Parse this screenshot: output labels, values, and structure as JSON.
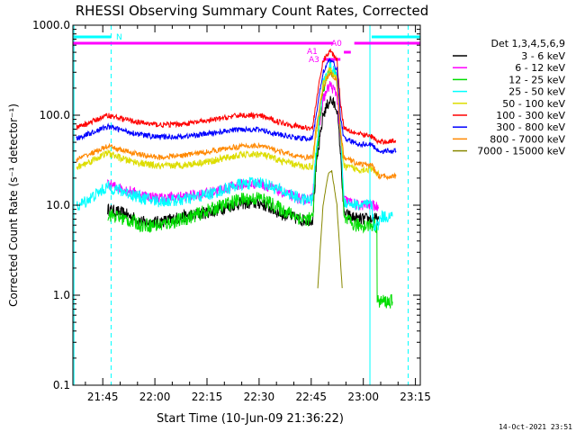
{
  "chart_data": {
    "type": "line",
    "title": "RHESSI Observing Summary Count Rates, Corrected",
    "xlabel": "Start Time (10-Jun-09 21:36:22)",
    "ylabel": "Corrected Count Rate (s⁻¹ detector⁻¹)",
    "y_scale": "log",
    "ylim": [
      0.1,
      1000
    ],
    "xlim_min": [
      0,
      100
    ],
    "y_ticks": [
      {
        "v": 0.1,
        "label": "0.1"
      },
      {
        "v": 1,
        "label": "1.0"
      },
      {
        "v": 10,
        "label": "10.0"
      },
      {
        "v": 100,
        "label": "100.0"
      },
      {
        "v": 1000,
        "label": "1000.0"
      }
    ],
    "x_ticks": [
      {
        "m": 8.6,
        "label": "21:45"
      },
      {
        "m": 23.6,
        "label": "22:00"
      },
      {
        "m": 38.6,
        "label": "22:15"
      },
      {
        "m": 53.6,
        "label": "22:30"
      },
      {
        "m": 68.6,
        "label": "22:45"
      },
      {
        "m": 83.6,
        "label": "23:00"
      },
      {
        "m": 98.6,
        "label": "23:15"
      }
    ],
    "x_units": "minutes since start",
    "legend_title": "Det 1,3,4,5,6,9",
    "legend_position": "right",
    "series": [
      {
        "name": "3 - 6 keV",
        "color": "#000000",
        "noise": 0.07,
        "points": [
          [
            10,
            9
          ],
          [
            15,
            8
          ],
          [
            20,
            6.5
          ],
          [
            25,
            6.5
          ],
          [
            32,
            7.5
          ],
          [
            40,
            8.5
          ],
          [
            48,
            10.5
          ],
          [
            54,
            10.5
          ],
          [
            60,
            8
          ],
          [
            66,
            6.8
          ],
          [
            69,
            7
          ],
          [
            70,
            25
          ],
          [
            72,
            100
          ],
          [
            74,
            150
          ],
          [
            76,
            120
          ],
          [
            77,
            40
          ],
          [
            78,
            8
          ],
          [
            82,
            7
          ],
          [
            86,
            7
          ],
          [
            88,
            7
          ]
        ]
      },
      {
        "name": "6 - 12 keV",
        "color": "#ff00ff",
        "noise": 0.06,
        "points": [
          [
            10,
            17
          ],
          [
            15,
            15
          ],
          [
            20,
            13
          ],
          [
            25,
            12
          ],
          [
            32,
            12.5
          ],
          [
            40,
            14
          ],
          [
            48,
            17
          ],
          [
            54,
            17.5
          ],
          [
            60,
            14
          ],
          [
            66,
            11.5
          ],
          [
            69,
            12
          ],
          [
            70,
            40
          ],
          [
            72,
            150
          ],
          [
            74,
            220
          ],
          [
            76,
            170
          ],
          [
            77,
            60
          ],
          [
            78,
            11.5
          ],
          [
            82,
            10
          ],
          [
            86,
            10
          ],
          [
            88,
            9.5
          ]
        ]
      },
      {
        "name": "12 - 25 keV",
        "color": "#00dd00",
        "noise": 0.08,
        "points": [
          [
            10,
            8
          ],
          [
            15,
            7
          ],
          [
            20,
            6
          ],
          [
            25,
            6
          ],
          [
            32,
            7
          ],
          [
            40,
            9
          ],
          [
            48,
            11.5
          ],
          [
            54,
            12
          ],
          [
            60,
            9
          ],
          [
            66,
            7
          ],
          [
            69,
            7
          ],
          [
            70,
            30
          ],
          [
            72,
            200
          ],
          [
            74,
            330
          ],
          [
            76,
            250
          ],
          [
            77,
            80
          ],
          [
            78,
            7
          ],
          [
            81,
            6
          ],
          [
            86,
            6
          ],
          [
            87.5,
            6
          ],
          [
            87.6,
            0.85
          ],
          [
            92,
            0.85
          ]
        ]
      },
      {
        "name": "25 - 50 keV",
        "color": "#00ffff",
        "noise": 0.07,
        "points": [
          [
            1,
            9.5
          ],
          [
            10,
            16
          ],
          [
            15,
            14
          ],
          [
            20,
            12
          ],
          [
            25,
            11
          ],
          [
            32,
            11.5
          ],
          [
            40,
            13.5
          ],
          [
            48,
            17
          ],
          [
            54,
            18
          ],
          [
            60,
            14.5
          ],
          [
            66,
            11.5
          ],
          [
            69,
            11.5
          ],
          [
            70,
            40
          ],
          [
            72,
            220
          ],
          [
            74,
            350
          ],
          [
            76,
            260
          ],
          [
            77,
            80
          ],
          [
            78,
            11
          ],
          [
            82,
            10
          ],
          [
            86,
            10
          ],
          [
            86.5,
            6
          ],
          [
            88,
            6
          ],
          [
            88.5,
            7.5
          ],
          [
            92,
            7.5
          ]
        ]
      },
      {
        "name": "50 - 100 keV",
        "color": "#dddd00",
        "noise": 0.04,
        "points": [
          [
            1,
            26
          ],
          [
            10,
            38
          ],
          [
            15,
            32
          ],
          [
            20,
            29
          ],
          [
            25,
            27
          ],
          [
            32,
            28
          ],
          [
            40,
            31
          ],
          [
            48,
            36
          ],
          [
            54,
            37
          ],
          [
            60,
            31
          ],
          [
            66,
            27
          ],
          [
            69,
            27
          ],
          [
            70,
            60
          ],
          [
            72,
            220
          ],
          [
            74,
            330
          ],
          [
            76,
            250
          ],
          [
            77,
            70
          ],
          [
            78,
            27
          ],
          [
            82,
            25
          ],
          [
            86,
            25
          ],
          [
            88,
            22
          ]
        ]
      },
      {
        "name": "100 - 300 keV",
        "color": "#ff0000",
        "noise": 0.03,
        "points": [
          [
            1,
            72
          ],
          [
            10,
            100
          ],
          [
            15,
            90
          ],
          [
            20,
            82
          ],
          [
            25,
            78
          ],
          [
            32,
            80
          ],
          [
            40,
            88
          ],
          [
            48,
            100
          ],
          [
            54,
            98
          ],
          [
            60,
            83
          ],
          [
            66,
            73
          ],
          [
            69,
            72
          ],
          [
            70,
            140
          ],
          [
            72,
            400
          ],
          [
            74,
            520
          ],
          [
            76,
            420
          ],
          [
            77,
            140
          ],
          [
            78,
            73
          ],
          [
            82,
            62
          ],
          [
            86,
            58
          ],
          [
            88,
            50
          ],
          [
            93,
            52
          ]
        ]
      },
      {
        "name": "300 - 800 keV",
        "color": "#0000ff",
        "noise": 0.03,
        "points": [
          [
            1,
            55
          ],
          [
            10,
            75
          ],
          [
            15,
            67
          ],
          [
            20,
            60
          ],
          [
            25,
            57
          ],
          [
            32,
            58
          ],
          [
            40,
            63
          ],
          [
            48,
            70
          ],
          [
            54,
            69
          ],
          [
            60,
            60
          ],
          [
            66,
            55
          ],
          [
            69,
            55
          ],
          [
            70,
            100
          ],
          [
            72,
            300
          ],
          [
            74,
            420
          ],
          [
            76,
            330
          ],
          [
            77,
            100
          ],
          [
            78,
            55
          ],
          [
            82,
            48
          ],
          [
            86,
            47
          ],
          [
            88,
            40
          ],
          [
            93,
            40
          ]
        ]
      },
      {
        "name": "800 - 7000 keV",
        "color": "#ff8800",
        "noise": 0.03,
        "points": [
          [
            1,
            32
          ],
          [
            10,
            45
          ],
          [
            15,
            40
          ],
          [
            20,
            36
          ],
          [
            25,
            34
          ],
          [
            32,
            36
          ],
          [
            40,
            40
          ],
          [
            48,
            45
          ],
          [
            54,
            46
          ],
          [
            60,
            39
          ],
          [
            66,
            34
          ],
          [
            69,
            34
          ],
          [
            70,
            70
          ],
          [
            72,
            200
          ],
          [
            74,
            300
          ],
          [
            76,
            240
          ],
          [
            77,
            70
          ],
          [
            78,
            34
          ],
          [
            82,
            29
          ],
          [
            86,
            28
          ],
          [
            88,
            21
          ],
          [
            93,
            21
          ]
        ]
      },
      {
        "name": "7000 - 15000 keV",
        "color": "#888800",
        "noise": 0.01,
        "points": [
          [
            70.5,
            1.2
          ],
          [
            72,
            10
          ],
          [
            73.5,
            22
          ],
          [
            74.5,
            24
          ],
          [
            76,
            10
          ],
          [
            77.5,
            1.2
          ]
        ]
      }
    ],
    "attenuator_label_a0": "A0",
    "attenuator_label_a1": "A1",
    "attenuator_label_a3": "A3",
    "flag_label_n": "N",
    "date_stamp": "14-Oct-2021 23:51"
  }
}
